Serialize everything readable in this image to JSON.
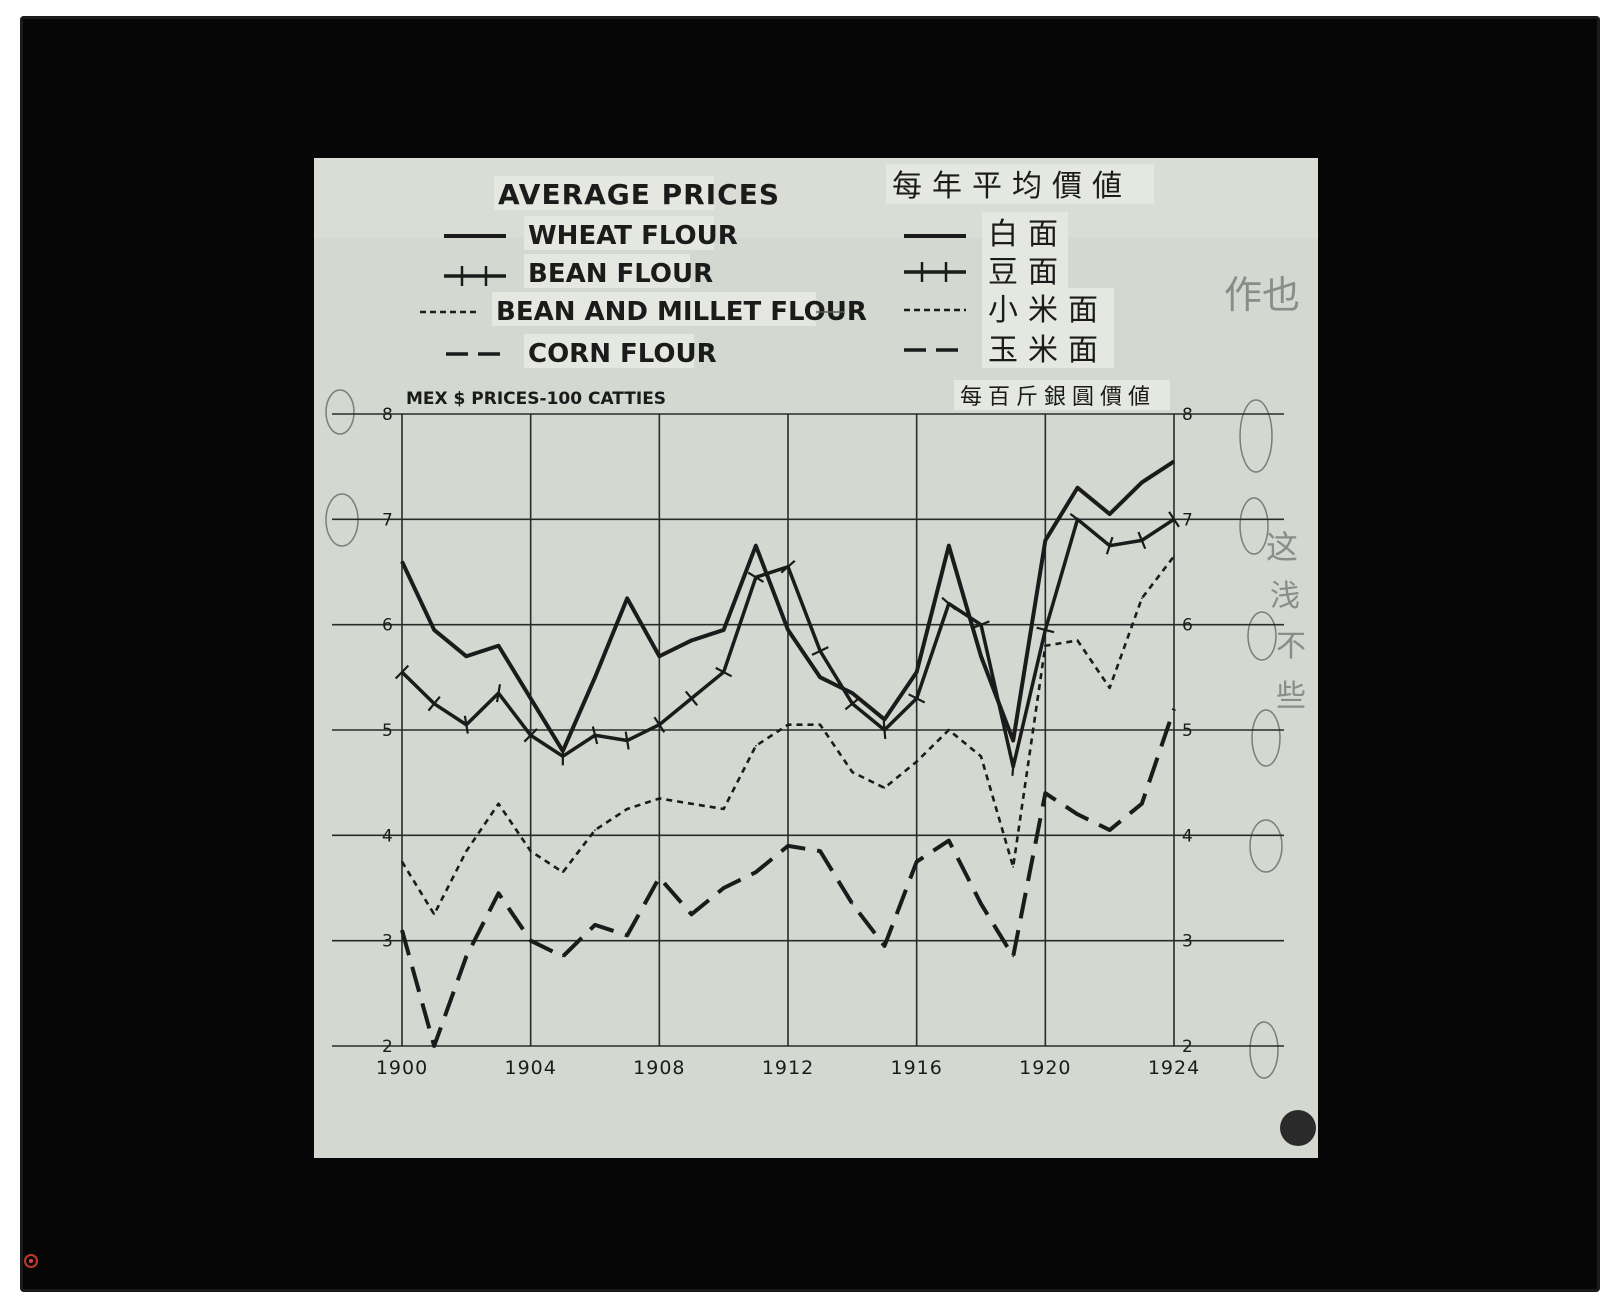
{
  "chart_data": {
    "type": "line",
    "title": "AVERAGE PRICES",
    "title_cn": "每年平均價値",
    "ylabel": "MEX $ PRICES-100 CATTIES",
    "ylabel_cn": "每百斤銀圓價値",
    "xlim": [
      1900,
      1924
    ],
    "ylim": [
      2,
      8
    ],
    "x_ticks": [
      1900,
      1904,
      1908,
      1912,
      1916,
      1920,
      1924
    ],
    "x_tick_labels": [
      "1900",
      "1904",
      "1908",
      "1912",
      "1916",
      "1920",
      "1924"
    ],
    "y_ticks": [
      2,
      3,
      4,
      5,
      6,
      7,
      8
    ],
    "y_tick_labels": [
      "2",
      "3",
      "4",
      "5",
      "6",
      "7",
      "8"
    ],
    "grid": true,
    "legend_position": "top",
    "x": [
      1900,
      1901,
      1902,
      1903,
      1904,
      1905,
      1906,
      1907,
      1908,
      1909,
      1910,
      1911,
      1912,
      1913,
      1914,
      1915,
      1916,
      1917,
      1918,
      1919,
      1920,
      1921,
      1922,
      1923,
      1924
    ],
    "series": [
      {
        "name": "WHEAT FLOUR",
        "name_cn": "白面",
        "style": "solid",
        "values": [
          6.6,
          5.95,
          5.7,
          5.8,
          5.3,
          4.8,
          5.5,
          6.25,
          5.7,
          5.85,
          5.95,
          6.75,
          5.95,
          5.5,
          5.35,
          5.1,
          5.55,
          6.75,
          5.7,
          4.9,
          6.8,
          7.3,
          7.05,
          7.35,
          7.55
        ]
      },
      {
        "name": "BEAN FLOUR",
        "name_cn": "豆面",
        "style": "cross",
        "values": [
          5.55,
          5.25,
          5.05,
          5.35,
          4.95,
          4.75,
          4.95,
          4.9,
          5.05,
          5.3,
          5.55,
          6.45,
          6.55,
          5.75,
          5.25,
          5.0,
          5.3,
          6.2,
          6.0,
          4.65,
          5.95,
          7.0,
          6.75,
          6.8,
          7.0
        ]
      },
      {
        "name": "BEAN AND MILLET FLOUR",
        "name_cn": "小米面",
        "style": "dotted",
        "values": [
          3.75,
          3.25,
          3.85,
          4.3,
          3.85,
          3.65,
          4.05,
          4.25,
          4.35,
          4.3,
          4.25,
          4.85,
          5.05,
          5.05,
          4.6,
          4.45,
          4.7,
          5.0,
          4.75,
          3.7,
          5.8,
          5.85,
          5.4,
          6.25,
          6.65
        ]
      },
      {
        "name": "CORN FLOUR",
        "name_cn": "玉米面",
        "style": "dashed",
        "values": [
          3.1,
          2.0,
          2.85,
          3.45,
          3.0,
          2.85,
          3.15,
          3.05,
          3.6,
          3.25,
          3.5,
          3.65,
          3.9,
          3.85,
          3.35,
          2.95,
          3.75,
          3.95,
          3.35,
          2.85,
          4.4,
          4.2,
          4.05,
          4.3,
          5.2
        ]
      }
    ]
  },
  "pencil_marks": {
    "top_right_note": "作也",
    "side_note": "这",
    "scribble_chars": [
      "浅",
      "不",
      "些"
    ]
  },
  "colors": {
    "frame": "#060606",
    "paper": "#d6dbd4",
    "ink": "#1b1b1b"
  }
}
